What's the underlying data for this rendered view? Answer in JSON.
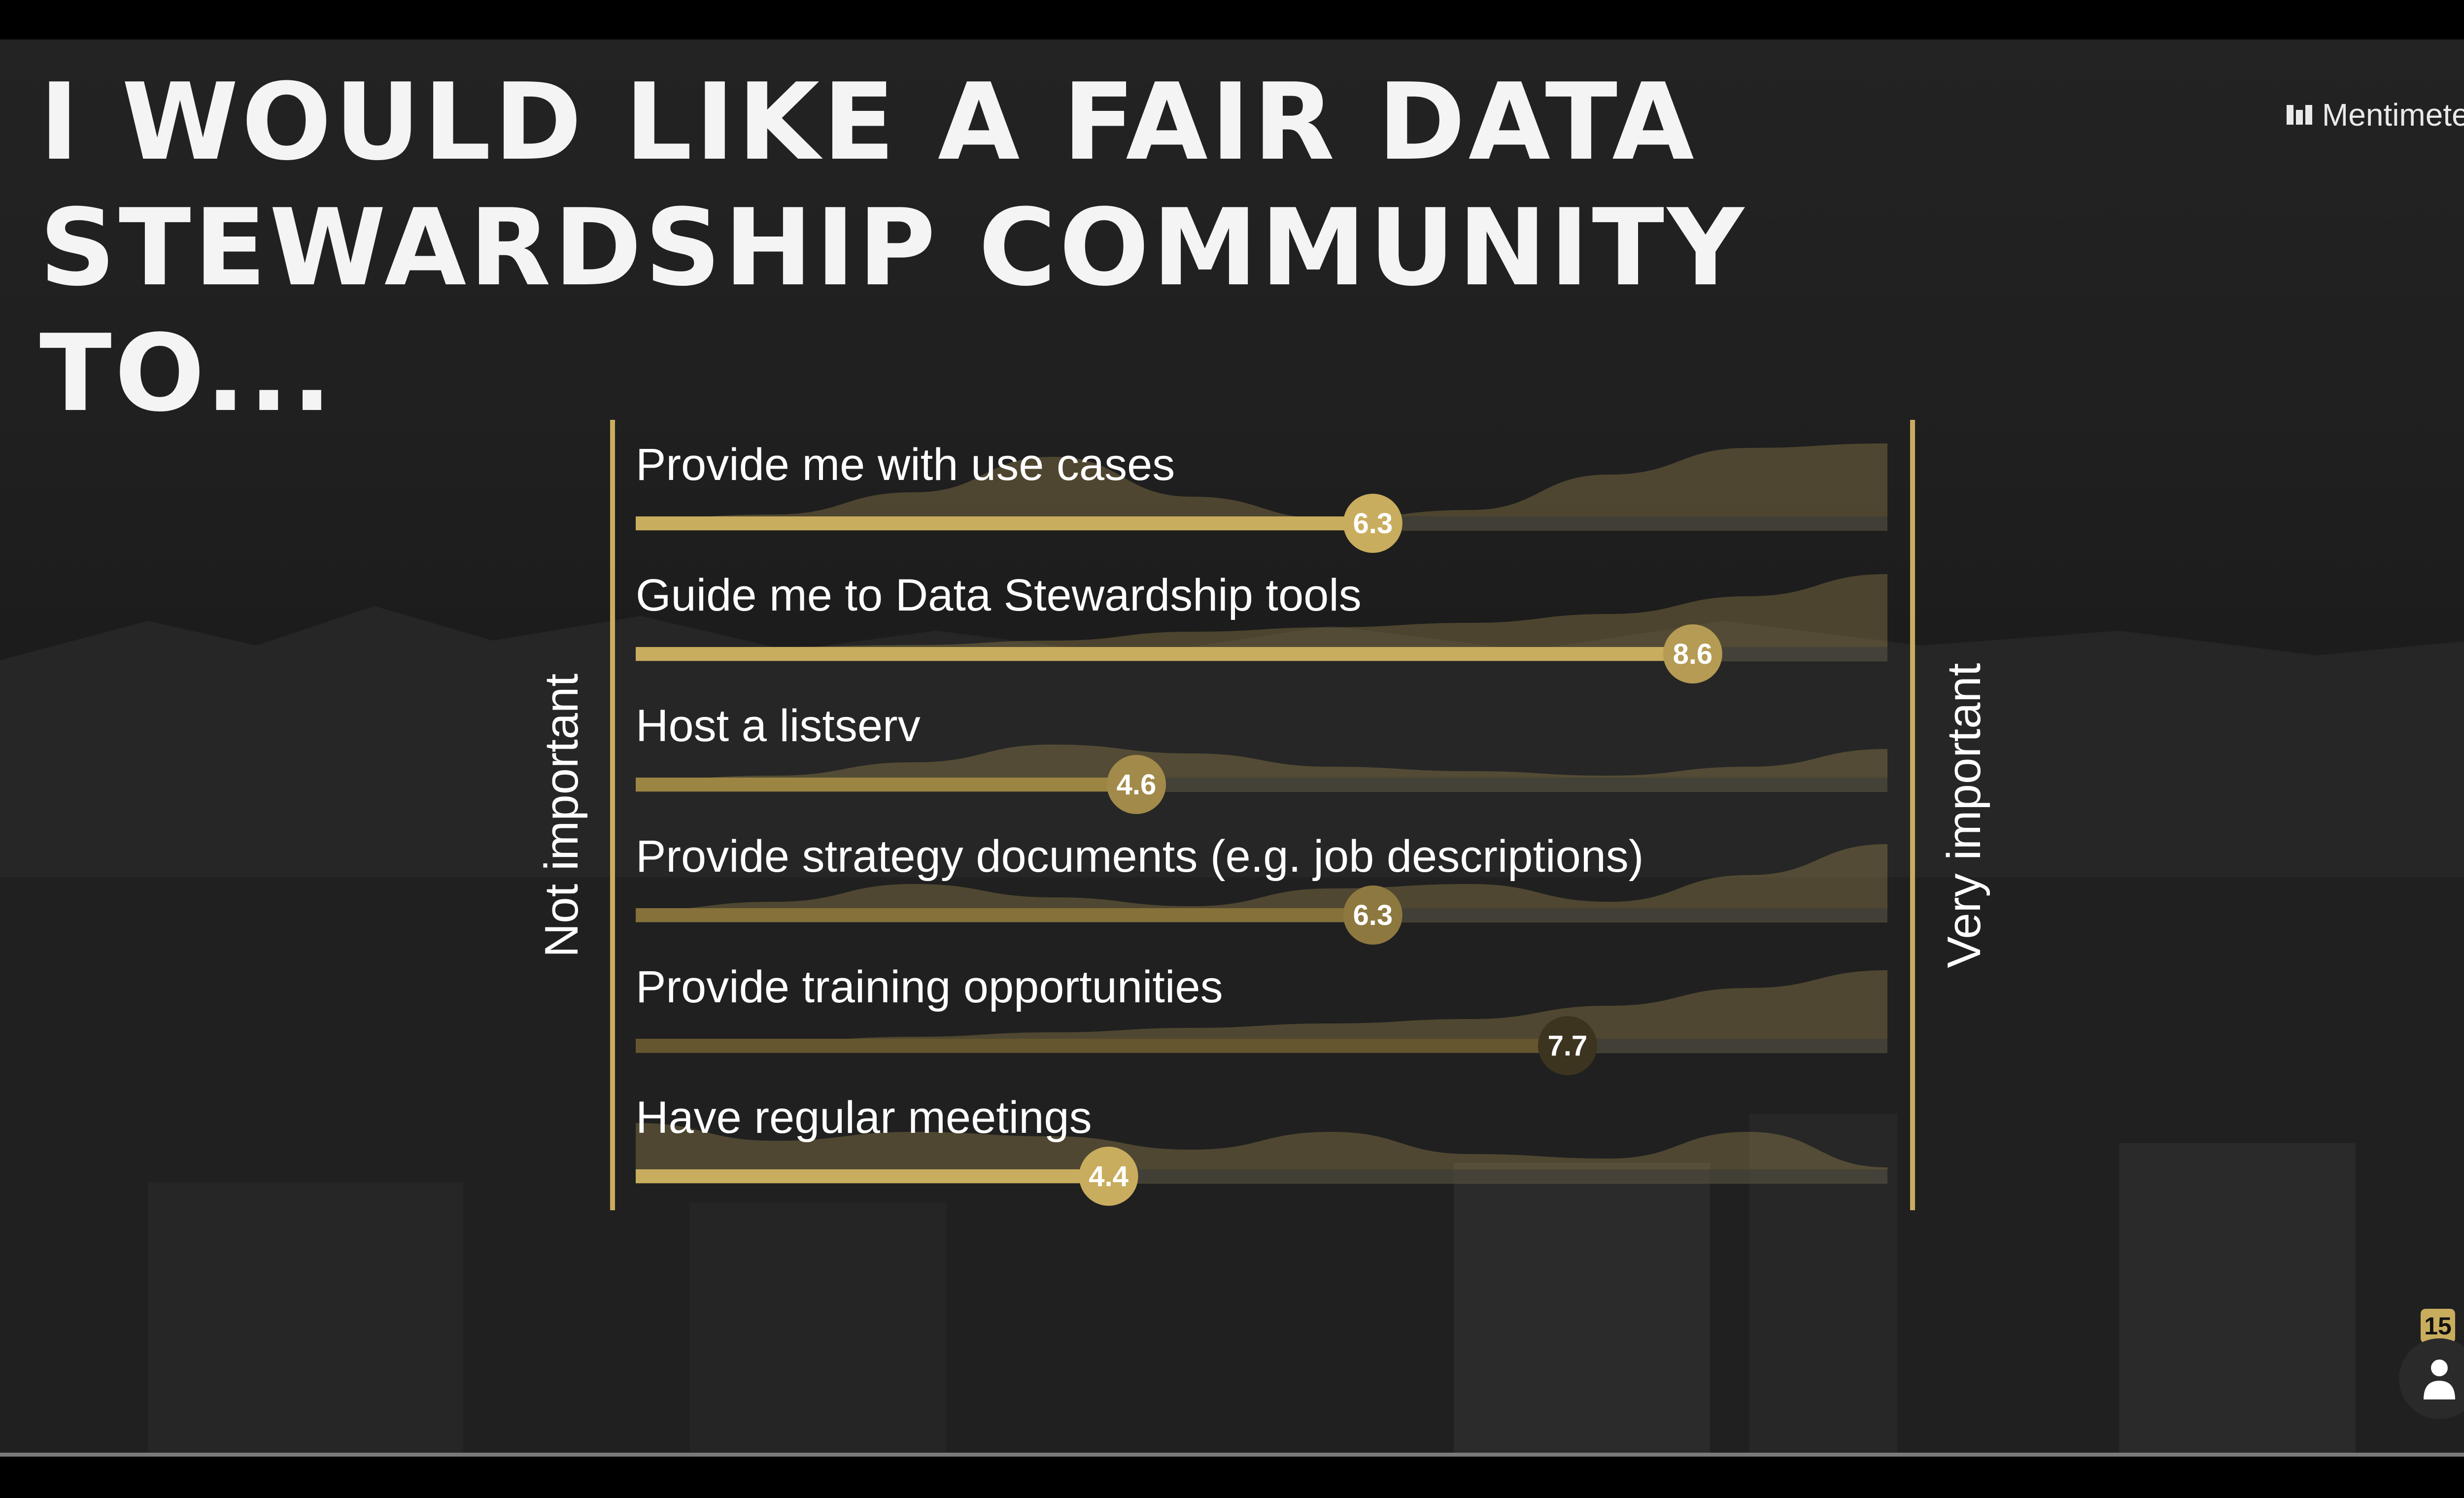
{
  "slide": {
    "title": "I WOULD LIKE A FAIR DATA STEWARDSHIP COMMUNITY TO...",
    "brand": "Mentimeter",
    "participant_count": "15"
  },
  "icons": {
    "brand": "mentimeter-logo-icon",
    "participants": "person-icon"
  },
  "colors": {
    "accent": "#c9ad5e",
    "background": "#1f1f1f",
    "text": "#ffffff"
  },
  "chart_data": {
    "type": "bar",
    "orientation": "horizontal",
    "scale_min": 1,
    "scale_max": 10,
    "scale_min_label": "Not important",
    "scale_max_label": "Very important",
    "categories": [
      "Provide me with use cases",
      "Guide me to Data Stewardship tools",
      "Host a listserv",
      "Provide strategy documents (e.g. job descriptions)",
      "Provide training opportunities",
      "Have regular meetings"
    ],
    "values": [
      6.3,
      8.6,
      4.6,
      6.3,
      7.7,
      4.4
    ],
    "value_labels": [
      "6.3",
      "8.6",
      "4.6",
      "6.3",
      "7.7",
      "4.4"
    ]
  }
}
